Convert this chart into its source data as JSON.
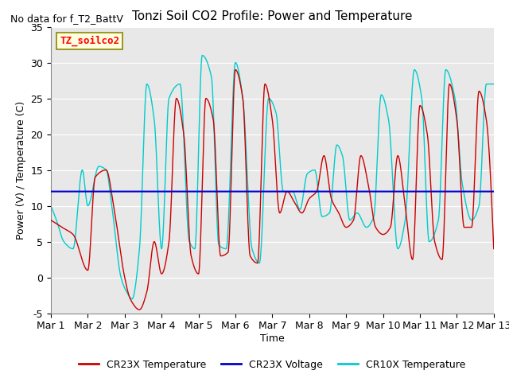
{
  "title": "Tonzi Soil CO2 Profile: Power and Temperature",
  "subtitle": "No data for f_T2_BattV",
  "ylabel": "Power (V) / Temperature (C)",
  "xlabel": "Time",
  "ylim": [
    -5,
    35
  ],
  "xlim": [
    0,
    12
  ],
  "xtick_labels": [
    "Mar 1",
    "Mar 2",
    "Mar 3",
    "Mar 4",
    "Mar 5",
    "Mar 6",
    "Mar 7",
    "Mar 8",
    "Mar 9",
    "Mar 10",
    "Mar 11",
    "Mar 12",
    "Mar 13"
  ],
  "ytick_vals": [
    -5,
    0,
    5,
    10,
    15,
    20,
    25,
    30,
    35
  ],
  "voltage_level": 12.0,
  "bg_color": "#e8e8e8",
  "legend_label_annotation": "TZ_soilco2",
  "cr23x_temp_color": "#cc0000",
  "cr23x_volt_color": "#0000cc",
  "cr10x_temp_color": "#00cccc",
  "title_fontsize": 11,
  "axis_fontsize": 9,
  "tick_fontsize": 9,
  "legend_fontsize": 9,
  "cr23x_keypoints_x": [
    0,
    0.3,
    0.6,
    1.0,
    1.2,
    1.5,
    1.7,
    2.0,
    2.15,
    2.4,
    2.6,
    2.8,
    3.0,
    3.2,
    3.4,
    3.6,
    3.8,
    4.0,
    4.2,
    4.4,
    4.6,
    4.8,
    5.0,
    5.2,
    5.4,
    5.6,
    5.8,
    6.0,
    6.2,
    6.4,
    6.6,
    6.8,
    7.0,
    7.2,
    7.4,
    7.6,
    7.8,
    8.0,
    8.2,
    8.4,
    8.6,
    8.8,
    9.0,
    9.2,
    9.4,
    9.6,
    9.8,
    10.0,
    10.2,
    10.4,
    10.6,
    10.8,
    11.0,
    11.2,
    11.4,
    11.6,
    11.8,
    12.0
  ],
  "cr23x_keypoints_y": [
    8,
    7,
    6,
    1,
    14,
    15,
    10,
    0,
    -3,
    -4.5,
    -2,
    5,
    0.5,
    5,
    25,
    20,
    3,
    0.5,
    25,
    22,
    3,
    3.5,
    29,
    25,
    3,
    2,
    27,
    22,
    9,
    12,
    10.5,
    9,
    11,
    12,
    17,
    11,
    9,
    7,
    8,
    17,
    13,
    7,
    6,
    7,
    17,
    10,
    2.5,
    24,
    20,
    5,
    2.5,
    27,
    22,
    7,
    7,
    26,
    22,
    4
  ],
  "cr10x_keypoints_x": [
    0,
    0.15,
    0.35,
    0.6,
    0.85,
    1.0,
    1.3,
    1.5,
    1.65,
    1.9,
    2.05,
    2.2,
    2.4,
    2.6,
    2.8,
    3.0,
    3.2,
    3.5,
    3.75,
    3.9,
    4.1,
    4.35,
    4.55,
    4.75,
    5.0,
    5.2,
    5.45,
    5.65,
    5.9,
    6.1,
    6.3,
    6.55,
    6.75,
    6.95,
    7.15,
    7.35,
    7.55,
    7.75,
    7.9,
    8.1,
    8.3,
    8.55,
    8.75,
    8.95,
    9.15,
    9.4,
    9.6,
    9.85,
    10.05,
    10.25,
    10.5,
    10.7,
    10.95,
    11.15,
    11.4,
    11.6,
    11.8,
    12.0
  ],
  "cr10x_keypoints_y": [
    10,
    8,
    5,
    4,
    15,
    10,
    15.5,
    15,
    10,
    0,
    -2,
    -3,
    4,
    27,
    22,
    4,
    25,
    27,
    5,
    4,
    31,
    28,
    4.5,
    4,
    30,
    25,
    4,
    2,
    25,
    23,
    12,
    12,
    9.5,
    14.5,
    15,
    8.5,
    9,
    18.5,
    17,
    8,
    9,
    7,
    8.5,
    25.5,
    22,
    4,
    8,
    29,
    25,
    5,
    8,
    29,
    25,
    13,
    8,
    10,
    27,
    27
  ]
}
